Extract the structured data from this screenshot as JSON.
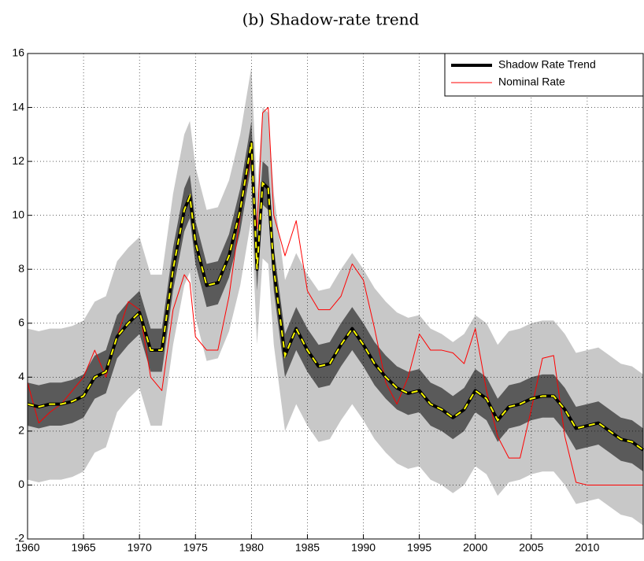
{
  "chart_data": {
    "type": "line",
    "title": "(b) Shadow-rate trend",
    "x": [
      1960,
      1961,
      1962,
      1963,
      1964,
      1965,
      1966,
      1967,
      1968,
      1969,
      1970,
      1971,
      1972,
      1973,
      1974,
      1974.5,
      1975,
      1976,
      1977,
      1978,
      1979,
      1980,
      1980.5,
      1981,
      1981.5,
      1982,
      1983,
      1984,
      1985,
      1986,
      1987,
      1988,
      1989,
      1990,
      1991,
      1992,
      1993,
      1994,
      1995,
      1996,
      1997,
      1998,
      1999,
      2000,
      2001,
      2002,
      2003,
      2004,
      2005,
      2006,
      2007,
      2008,
      2009,
      2010,
      2011,
      2012,
      2013,
      2014,
      2015
    ],
    "bands": [
      {
        "color": "#c8c8c8",
        "upper": [
          5.8,
          5.7,
          5.8,
          5.8,
          5.9,
          6.1,
          6.8,
          7.0,
          8.3,
          8.8,
          9.2,
          7.8,
          7.8,
          10.8,
          13.0,
          13.5,
          11.8,
          10.2,
          10.3,
          11.3,
          13.0,
          15.5,
          10.8,
          14.0,
          13.8,
          10.8,
          7.6,
          8.6,
          7.8,
          7.2,
          7.3,
          8.0,
          8.6,
          8.0,
          7.3,
          6.8,
          6.4,
          6.2,
          6.3,
          5.8,
          5.6,
          5.3,
          5.6,
          6.3,
          6.0,
          5.2,
          5.7,
          5.8,
          6.0,
          6.1,
          6.1,
          5.6,
          4.9,
          5.0,
          5.1,
          4.8,
          4.5,
          4.4,
          4.1
        ],
        "lower": [
          0.2,
          0.1,
          0.2,
          0.2,
          0.3,
          0.5,
          1.2,
          1.4,
          2.7,
          3.2,
          3.6,
          2.2,
          2.2,
          5.2,
          7.4,
          7.9,
          6.2,
          4.6,
          4.7,
          5.7,
          7.4,
          9.9,
          5.2,
          8.4,
          8.2,
          5.2,
          2.0,
          3.0,
          2.2,
          1.6,
          1.7,
          2.4,
          3.0,
          2.4,
          1.7,
          1.2,
          0.8,
          0.6,
          0.7,
          0.2,
          0.0,
          -0.3,
          0.0,
          0.7,
          0.4,
          -0.4,
          0.1,
          0.2,
          0.4,
          0.5,
          0.5,
          0.0,
          -0.7,
          -0.6,
          -0.5,
          -0.8,
          -1.1,
          -1.2,
          -1.5
        ]
      },
      {
        "color": "#5a5a5a",
        "upper": [
          3.8,
          3.7,
          3.8,
          3.8,
          3.9,
          4.1,
          4.8,
          5.0,
          6.3,
          6.8,
          7.2,
          5.8,
          5.8,
          8.8,
          11.0,
          11.5,
          9.8,
          8.2,
          8.3,
          9.3,
          11.0,
          13.5,
          8.8,
          12.0,
          11.8,
          8.8,
          5.6,
          6.6,
          5.8,
          5.2,
          5.3,
          6.0,
          6.6,
          6.0,
          5.3,
          4.8,
          4.4,
          4.2,
          4.3,
          3.8,
          3.6,
          3.3,
          3.6,
          4.3,
          4.0,
          3.2,
          3.7,
          3.8,
          4.0,
          4.1,
          4.1,
          3.6,
          2.9,
          3.0,
          3.1,
          2.8,
          2.5,
          2.4,
          2.1
        ],
        "lower": [
          2.2,
          2.1,
          2.2,
          2.2,
          2.3,
          2.5,
          3.2,
          3.4,
          4.7,
          5.2,
          5.6,
          4.2,
          4.2,
          7.2,
          9.4,
          9.9,
          8.2,
          6.6,
          6.7,
          7.7,
          9.4,
          11.9,
          7.2,
          10.4,
          10.2,
          7.2,
          4.0,
          5.0,
          4.2,
          3.6,
          3.7,
          4.4,
          5.0,
          4.4,
          3.7,
          3.2,
          2.8,
          2.6,
          2.7,
          2.2,
          2.0,
          1.7,
          2.0,
          2.7,
          2.4,
          1.6,
          2.1,
          2.2,
          2.4,
          2.5,
          2.5,
          2.0,
          1.3,
          1.4,
          1.5,
          1.2,
          0.9,
          0.8,
          0.5
        ]
      }
    ],
    "series": [
      {
        "name": "Shadow Rate Trend",
        "color": "#000000",
        "dash_color": "#ffff00",
        "width": 4,
        "values": [
          3.0,
          2.9,
          3.0,
          3.0,
          3.1,
          3.3,
          4.0,
          4.2,
          5.5,
          6.0,
          6.4,
          5.0,
          5.0,
          8.0,
          10.2,
          10.7,
          9.0,
          7.4,
          7.5,
          8.5,
          10.2,
          12.7,
          8.0,
          11.2,
          11.0,
          8.0,
          4.8,
          5.8,
          5.0,
          4.4,
          4.5,
          5.2,
          5.8,
          5.2,
          4.5,
          4.0,
          3.6,
          3.4,
          3.5,
          3.0,
          2.8,
          2.5,
          2.8,
          3.5,
          3.2,
          2.4,
          2.9,
          3.0,
          3.2,
          3.3,
          3.3,
          2.8,
          2.1,
          2.2,
          2.3,
          2.0,
          1.7,
          1.6,
          1.3
        ]
      },
      {
        "name": "Nominal Rate",
        "color": "#ff0000",
        "width": 1,
        "values": [
          3.8,
          2.3,
          2.7,
          3.0,
          3.5,
          4.0,
          5.0,
          4.0,
          5.5,
          6.8,
          6.5,
          4.0,
          3.5,
          6.5,
          7.8,
          7.5,
          5.5,
          5.0,
          5.0,
          7.0,
          10.0,
          12.3,
          9.5,
          13.8,
          14.0,
          10.0,
          8.5,
          9.8,
          7.2,
          6.5,
          6.5,
          7.0,
          8.2,
          7.6,
          5.8,
          3.8,
          3.0,
          4.0,
          5.6,
          5.0,
          5.0,
          4.9,
          4.5,
          5.8,
          3.5,
          1.8,
          1.0,
          1.0,
          2.8,
          4.7,
          4.8,
          1.8,
          0.1,
          0.0,
          0,
          0,
          0,
          0,
          0
        ]
      }
    ],
    "xlim": [
      1960,
      2015
    ],
    "ylim": [
      -2,
      16
    ],
    "xticks": [
      1960,
      1965,
      1970,
      1975,
      1980,
      1985,
      1990,
      1995,
      2000,
      2005,
      2010
    ],
    "yticks": [
      -2,
      0,
      2,
      4,
      6,
      8,
      10,
      12,
      14,
      16
    ],
    "grid": true,
    "legend": "upper right"
  }
}
